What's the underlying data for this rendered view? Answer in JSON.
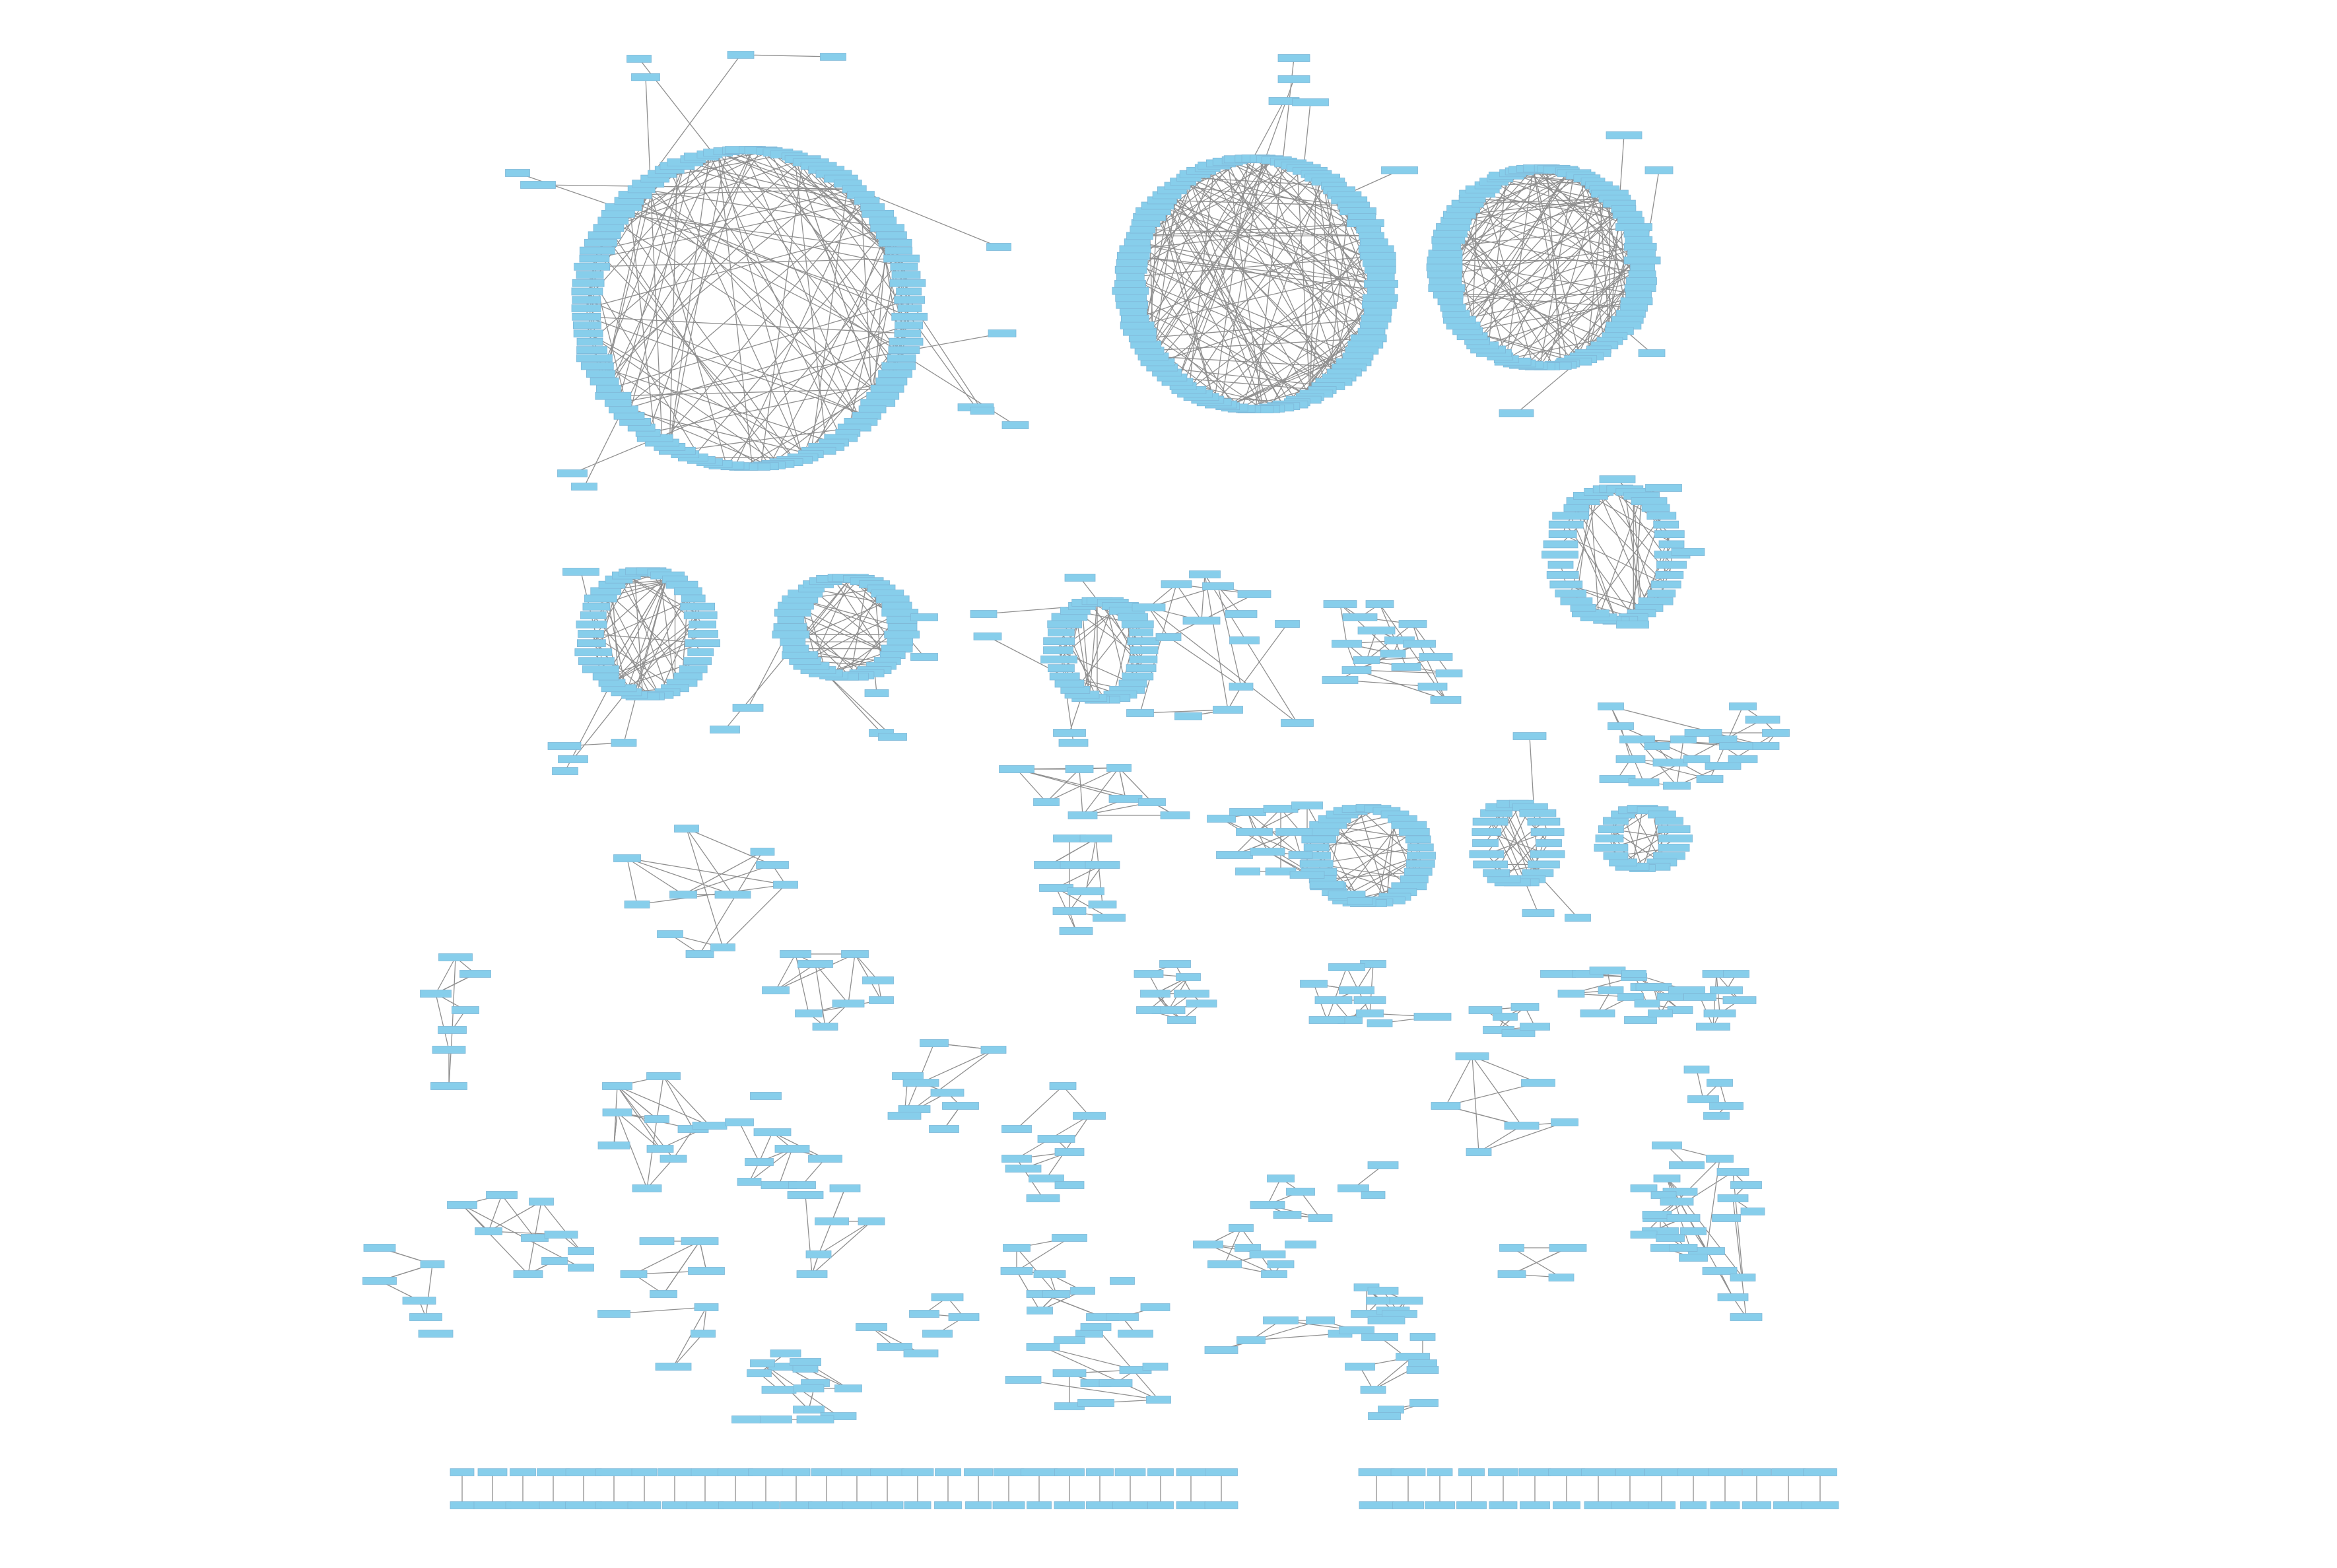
{
  "diagram": {
    "node_fill": "#87CEEB",
    "node_stroke": "#7fb8d8",
    "edge_color": "#8f8f8f",
    "background": "#ffffff",
    "labels_legible": false
  }
}
